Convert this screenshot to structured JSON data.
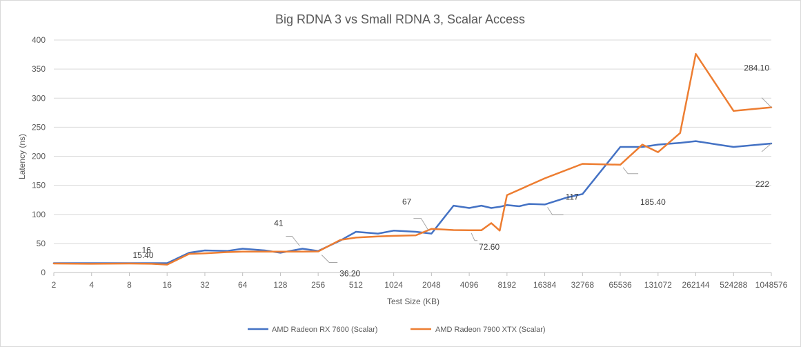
{
  "chart_data": {
    "type": "line",
    "title": "Big RDNA 3 vs Small RDNA 3, Scalar Access",
    "xlabel": "Test Size (KB)",
    "ylabel": "Latency (ns)",
    "ylim": [
      0,
      400
    ],
    "yticks": [
      0,
      50,
      100,
      150,
      200,
      250,
      300,
      350,
      400
    ],
    "x_scale": "log2",
    "xlim": [
      2,
      1048576
    ],
    "xticks": [
      2,
      4,
      8,
      16,
      32,
      64,
      128,
      256,
      512,
      1024,
      2048,
      4096,
      8192,
      16384,
      32768,
      65536,
      131072,
      262144,
      524288,
      1048576
    ],
    "xtick_labels": [
      "2",
      "4",
      "8",
      "16",
      "32",
      "64",
      "128",
      "256",
      "512",
      "1024",
      "2048",
      "4096",
      "8192",
      "16384",
      "32768",
      "65536",
      "131072",
      "262144",
      "524288",
      "1048576"
    ],
    "grid": true,
    "legend_position": "bottom",
    "series": [
      {
        "name": "AMD Radeon RX 7600 (Scalar)",
        "color": "#4472c4",
        "x": [
          2,
          4,
          8,
          12,
          16,
          24,
          32,
          48,
          64,
          96,
          128,
          192,
          256,
          384,
          512,
          768,
          1024,
          1536,
          2048,
          3072,
          4096,
          5120,
          6144,
          7168,
          8192,
          10240,
          12288,
          16384,
          24576,
          32768,
          65536,
          98304,
          131072,
          196608,
          262144,
          393216,
          524288,
          1048576
        ],
        "values": [
          16,
          16,
          16,
          16,
          16,
          34,
          38,
          37,
          41,
          38,
          34,
          41,
          37,
          55,
          70,
          67,
          72,
          70,
          67,
          115,
          111,
          115,
          111,
          113,
          116,
          114,
          118,
          117,
          129,
          135,
          216,
          216,
          220,
          223,
          226,
          220,
          216,
          222
        ]
      },
      {
        "name": "AMD Radeon 7900 XTX (Scalar)",
        "color": "#ed7d31",
        "x": [
          2,
          4,
          8,
          12,
          16,
          24,
          32,
          48,
          64,
          96,
          128,
          192,
          256,
          384,
          512,
          768,
          1024,
          1536,
          2048,
          3072,
          4096,
          5120,
          6144,
          7168,
          8192,
          16384,
          32768,
          65536,
          98304,
          131072,
          196608,
          262144,
          524288,
          1048576
        ],
        "values": [
          15.4,
          15,
          15.4,
          15,
          13.5,
          32,
          33,
          35,
          36,
          36,
          36,
          36,
          36.2,
          56,
          60,
          62,
          63,
          64,
          75,
          73,
          72.6,
          72.6,
          85,
          72,
          133,
          162,
          187,
          185.4,
          220,
          207,
          240,
          376,
          278,
          284.1
        ]
      }
    ],
    "annotations": [
      {
        "series": 0,
        "x": 8,
        "y": 16,
        "text": "16"
      },
      {
        "series": 1,
        "x": 8,
        "y": 15.4,
        "text": "15.40"
      },
      {
        "series": 0,
        "x": 192,
        "y": 41,
        "text": "41"
      },
      {
        "series": 1,
        "x": 256,
        "y": 36.2,
        "text": "36.20"
      },
      {
        "series": 0,
        "x": 2048,
        "y": 67,
        "text": "67"
      },
      {
        "series": 1,
        "x": 4096,
        "y": 72.6,
        "text": "72.60"
      },
      {
        "series": 0,
        "x": 16384,
        "y": 117,
        "text": "117"
      },
      {
        "series": 1,
        "x": 65536,
        "y": 185.4,
        "text": "185.40"
      },
      {
        "series": 0,
        "x": 1048576,
        "y": 222,
        "text": "222"
      },
      {
        "series": 1,
        "x": 1048576,
        "y": 284.1,
        "text": "284.10"
      }
    ]
  }
}
